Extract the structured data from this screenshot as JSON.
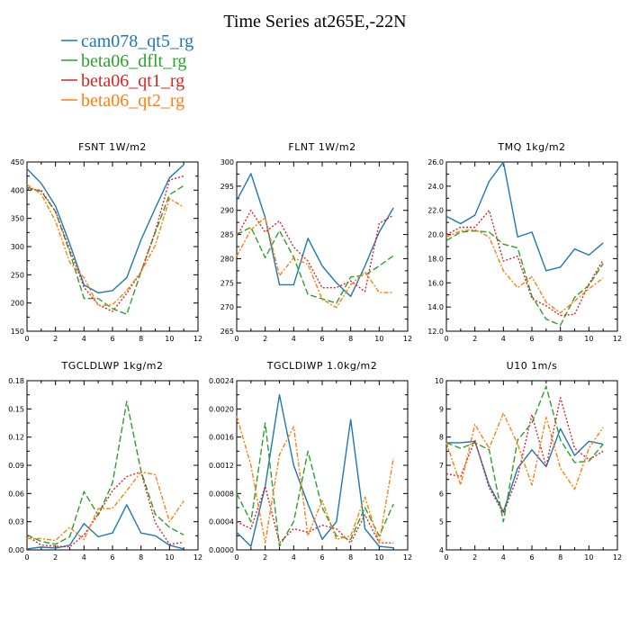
{
  "figure": {
    "title": "Time Series at265E,-22N"
  },
  "legend": [
    {
      "name": "cam078_qt5_rg",
      "color": "#1f77b4"
    },
    {
      "name": "beta06_dflt_rg",
      "color": "#2ca02c"
    },
    {
      "name": "beta06_qt1_rg",
      "color": "#d62728"
    },
    {
      "name": "beta06_qt2_rg",
      "color": "#ff7f0e"
    }
  ],
  "chart_data": [
    {
      "type": "line",
      "title": "FSNT  1W/m2",
      "x": [
        0,
        1,
        2,
        3,
        4,
        5,
        6,
        7,
        8,
        9,
        10,
        11
      ],
      "xlim": [
        0,
        12
      ],
      "xticks": [
        0,
        2,
        4,
        6,
        8,
        10,
        12
      ],
      "ylim": [
        150,
        450
      ],
      "yticks": [
        150,
        200,
        250,
        300,
        350,
        400,
        450
      ],
      "ytick_labels": [
        "150",
        "200",
        "250",
        "300",
        "350",
        "400",
        "450"
      ],
      "series": [
        {
          "name": "cam078_qt5_rg",
          "values": [
            438,
            412,
            372,
            305,
            232,
            218,
            222,
            245,
            312,
            368,
            422,
            445
          ]
        },
        {
          "name": "beta06_dflt_rg",
          "values": [
            405,
            398,
            362,
            290,
            208,
            208,
            190,
            180,
            255,
            325,
            392,
            408
          ]
        },
        {
          "name": "beta06_qt1_rg",
          "values": [
            402,
            400,
            362,
            295,
            228,
            197,
            185,
            217,
            255,
            327,
            418,
            425
          ]
        },
        {
          "name": "beta06_qt2_rg",
          "values": [
            410,
            393,
            345,
            272,
            245,
            195,
            197,
            222,
            255,
            302,
            385,
            370
          ]
        }
      ]
    },
    {
      "type": "line",
      "title": "FLNT  1W/m2",
      "x": [
        0,
        1,
        2,
        3,
        4,
        5,
        6,
        7,
        8,
        9,
        10,
        11
      ],
      "xlim": [
        0,
        12
      ],
      "xticks": [
        0,
        2,
        4,
        6,
        8,
        10,
        12
      ],
      "ylim": [
        265,
        300
      ],
      "yticks": [
        265,
        270,
        275,
        280,
        285,
        290,
        295,
        300
      ],
      "ytick_labels": [
        "265",
        "270",
        "275",
        "280",
        "285",
        "290",
        "295",
        "300"
      ],
      "series": [
        {
          "name": "cam078_qt5_rg",
          "values": [
            292,
            297.6,
            288.5,
            274.6,
            274.6,
            284.2,
            278.5,
            275,
            272.2,
            278.5,
            285.5,
            290.5
          ]
        },
        {
          "name": "beta06_dflt_rg",
          "values": [
            285,
            286.5,
            280.2,
            285.8,
            280.3,
            272.6,
            271.7,
            270.8,
            276.2,
            276.6,
            278.5,
            280.6
          ]
        },
        {
          "name": "beta06_qt1_rg",
          "values": [
            284.5,
            290,
            285.5,
            287.8,
            282.4,
            279.5,
            274,
            274,
            275.4,
            273.2,
            287.3,
            289
          ]
        },
        {
          "name": "beta06_qt2_rg",
          "values": [
            280.5,
            286,
            288.5,
            276.5,
            280.2,
            278.8,
            271.6,
            269.9,
            274.6,
            277.3,
            273,
            273
          ]
        }
      ]
    },
    {
      "type": "line",
      "title": "TMQ  1kg/m2",
      "x": [
        0,
        1,
        2,
        3,
        4,
        5,
        6,
        7,
        8,
        9,
        10,
        11
      ],
      "xlim": [
        0,
        12
      ],
      "xticks": [
        0,
        2,
        4,
        6,
        8,
        10,
        12
      ],
      "ylim": [
        12,
        26
      ],
      "yticks": [
        12,
        14,
        16,
        18,
        20,
        22,
        24,
        26
      ],
      "ytick_labels": [
        "12.0",
        "14.0",
        "16.0",
        "18.0",
        "20.0",
        "22.0",
        "24.0",
        "26.0"
      ],
      "series": [
        {
          "name": "cam078_qt5_rg",
          "values": [
            21.5,
            20.9,
            21.6,
            24.4,
            26,
            19.8,
            20.2,
            17,
            17.3,
            18.8,
            18.3,
            19.3
          ]
        },
        {
          "name": "beta06_dflt_rg",
          "values": [
            19.5,
            20.2,
            20.3,
            20.2,
            19.2,
            18.9,
            14.9,
            13,
            12.5,
            14.8,
            15.8,
            17.6
          ]
        },
        {
          "name": "beta06_qt1_rg",
          "values": [
            20,
            20.6,
            20.6,
            22,
            17.8,
            18.2,
            14.7,
            14.1,
            13.3,
            13.4,
            15.9,
            17.9
          ]
        },
        {
          "name": "beta06_qt2_rg",
          "values": [
            19.8,
            20.3,
            20.4,
            19.8,
            17,
            15.6,
            16.5,
            14.4,
            13.5,
            14.5,
            15.5,
            16.4
          ]
        }
      ]
    },
    {
      "type": "line",
      "title": "TGCLDLWP  1kg/m2",
      "x": [
        0,
        1,
        2,
        3,
        4,
        5,
        6,
        7,
        8,
        9,
        10,
        11
      ],
      "xlim": [
        0,
        12
      ],
      "xticks": [
        0,
        2,
        4,
        6,
        8,
        10,
        12
      ],
      "ylim": [
        0,
        0.18
      ],
      "yticks": [
        0,
        0.03,
        0.06,
        0.09,
        0.12,
        0.15,
        0.18
      ],
      "ytick_labels": [
        "0.00",
        "0.03",
        "0.06",
        "0.09",
        "0.12",
        "0.15",
        "0.18"
      ],
      "series": [
        {
          "name": "cam078_qt5_rg",
          "values": [
            0.001,
            0.003,
            0.002,
            0.005,
            0.028,
            0.014,
            0.018,
            0.048,
            0.018,
            0.015,
            0.005,
            0.001
          ]
        },
        {
          "name": "beta06_dflt_rg",
          "values": [
            0.016,
            0.009,
            0.006,
            0.014,
            0.062,
            0.037,
            0.071,
            0.158,
            0.084,
            0.038,
            0.024,
            0.016
          ]
        },
        {
          "name": "beta06_qt1_rg",
          "values": [
            0.015,
            0.005,
            0.004,
            0.003,
            0.016,
            0.038,
            0.063,
            0.078,
            0.083,
            0.029,
            0.006,
            0.008
          ]
        },
        {
          "name": "beta06_qt2_rg",
          "values": [
            0.012,
            0.012,
            0.01,
            0.024,
            0.011,
            0.044,
            0.044,
            0.063,
            0.083,
            0.08,
            0.03,
            0.052
          ]
        }
      ]
    },
    {
      "type": "line",
      "title": "TGCLDIWP  1.0kg/m2",
      "x": [
        0,
        1,
        2,
        3,
        4,
        5,
        6,
        7,
        8,
        9,
        10,
        11
      ],
      "xlim": [
        0,
        12
      ],
      "xticks": [
        0,
        2,
        4,
        6,
        8,
        10,
        12
      ],
      "ylim": [
        0,
        0.0024
      ],
      "yticks": [
        0,
        0.0004,
        0.0008,
        0.0012,
        0.0016,
        0.002,
        0.0024
      ],
      "ytick_labels": [
        "0.0000",
        "0.0004",
        "0.0008",
        "0.0012",
        "0.0016",
        "0.0020",
        "0.0024"
      ],
      "series": [
        {
          "name": "cam078_qt5_rg",
          "values": [
            0.00025,
            5e-05,
            0.0009,
            0.0022,
            0.0012,
            0.00065,
            0.00015,
            0.0004,
            0.00185,
            0.0003,
            5e-05,
            3e-05
          ]
        },
        {
          "name": "beta06_dflt_rg",
          "values": [
            0.0008,
            0.0004,
            0.0018,
            5e-05,
            0.0004,
            0.0014,
            0.0006,
            0.0002,
            0.00015,
            0.0006,
            0.0002,
            0.00065
          ]
        },
        {
          "name": "beta06_qt1_rg",
          "values": [
            0.0004,
            0.0003,
            0.0009,
            0.0001,
            0.0003,
            0.00025,
            0.00035,
            0.0003,
            0.0001,
            0.0005,
            0.0001,
            0.0001
          ]
        },
        {
          "name": "beta06_qt2_rg",
          "values": [
            0.0019,
            0.0012,
            0.0001,
            0.00135,
            0.00175,
            0.0002,
            0.0007,
            0.00015,
            0.0002,
            0.00075,
            0.0001,
            0.0013
          ]
        }
      ]
    },
    {
      "type": "line",
      "title": "U10  1m/s",
      "x": [
        0,
        1,
        2,
        3,
        4,
        5,
        6,
        7,
        8,
        9,
        10,
        11
      ],
      "xlim": [
        0,
        12
      ],
      "xticks": [
        0,
        2,
        4,
        6,
        8,
        10,
        12
      ],
      "ylim": [
        4,
        10
      ],
      "yticks": [
        4,
        5,
        6,
        7,
        8,
        9,
        10
      ],
      "ytick_labels": [
        "4",
        "5",
        "6",
        "7",
        "8",
        "9",
        "10"
      ],
      "series": [
        {
          "name": "cam078_qt5_rg",
          "values": [
            7.8,
            7.8,
            7.85,
            6.3,
            5.35,
            6.9,
            7.55,
            6.95,
            8.3,
            7.35,
            7.85,
            7.75
          ]
        },
        {
          "name": "beta06_dflt_rg",
          "values": [
            7.8,
            7.6,
            7.8,
            7.55,
            5,
            7.9,
            8.5,
            9.8,
            7.9,
            7.1,
            7.15,
            7.75
          ]
        },
        {
          "name": "beta06_qt1_rg",
          "values": [
            6.7,
            6.6,
            7.9,
            6.2,
            5.3,
            6.6,
            8.8,
            6.95,
            9.4,
            7.6,
            7.2,
            7.5
          ]
        },
        {
          "name": "beta06_qt2_rg",
          "values": [
            7.8,
            6.3,
            8.45,
            7.6,
            8.85,
            7.75,
            6.3,
            8.7,
            6.9,
            6.15,
            7.6,
            8.35
          ]
        }
      ]
    }
  ]
}
